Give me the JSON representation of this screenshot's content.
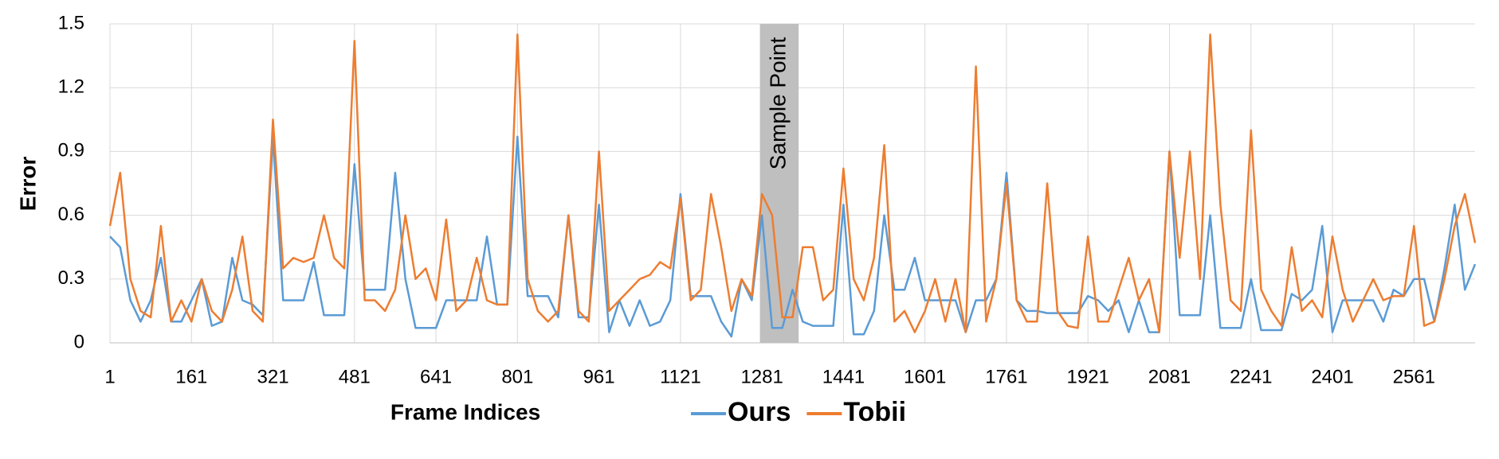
{
  "chart_data": {
    "type": "line",
    "y_label": "Error",
    "x_label": "Frame Indices",
    "x": [
      1,
      21,
      41,
      61,
      81,
      101,
      121,
      141,
      161,
      181,
      201,
      221,
      241,
      261,
      281,
      301,
      321,
      341,
      361,
      381,
      401,
      421,
      441,
      461,
      481,
      501,
      521,
      541,
      561,
      581,
      601,
      621,
      641,
      661,
      681,
      701,
      721,
      741,
      761,
      781,
      801,
      821,
      841,
      861,
      881,
      901,
      921,
      941,
      961,
      981,
      1001,
      1021,
      1041,
      1061,
      1081,
      1101,
      1121,
      1141,
      1161,
      1181,
      1201,
      1221,
      1241,
      1261,
      1281,
      1301,
      1321,
      1341,
      1361,
      1381,
      1401,
      1421,
      1441,
      1461,
      1481,
      1501,
      1521,
      1541,
      1561,
      1581,
      1601,
      1621,
      1641,
      1661,
      1681,
      1701,
      1721,
      1741,
      1761,
      1781,
      1801,
      1821,
      1841,
      1861,
      1881,
      1901,
      1921,
      1941,
      1961,
      1981,
      2001,
      2021,
      2041,
      2061,
      2081,
      2101,
      2121,
      2141,
      2161,
      2181,
      2201,
      2221,
      2241,
      2261,
      2281,
      2301,
      2321,
      2341,
      2361,
      2381,
      2401,
      2421,
      2441,
      2461,
      2481,
      2501,
      2521,
      2541,
      2561,
      2581,
      2601,
      2621,
      2641,
      2661,
      2681
    ],
    "series": [
      {
        "name": "Ours",
        "color": "#5b9bd5",
        "values": [
          0.5,
          0.45,
          0.2,
          0.1,
          0.2,
          0.4,
          0.1,
          0.1,
          0.2,
          0.3,
          0.08,
          0.1,
          0.4,
          0.2,
          0.18,
          0.13,
          0.97,
          0.2,
          0.2,
          0.2,
          0.38,
          0.13,
          0.13,
          0.13,
          0.84,
          0.25,
          0.25,
          0.25,
          0.8,
          0.3,
          0.07,
          0.07,
          0.07,
          0.2,
          0.2,
          0.2,
          0.2,
          0.5,
          0.18,
          0.18,
          0.97,
          0.22,
          0.22,
          0.22,
          0.12,
          0.6,
          0.12,
          0.12,
          0.65,
          0.05,
          0.2,
          0.08,
          0.2,
          0.08,
          0.1,
          0.2,
          0.7,
          0.22,
          0.22,
          0.22,
          0.1,
          0.03,
          0.3,
          0.2,
          0.6,
          0.07,
          0.07,
          0.25,
          0.1,
          0.08,
          0.08,
          0.08,
          0.65,
          0.04,
          0.04,
          0.15,
          0.6,
          0.25,
          0.25,
          0.4,
          0.2,
          0.2,
          0.2,
          0.2,
          0.05,
          0.2,
          0.2,
          0.3,
          0.8,
          0.2,
          0.15,
          0.15,
          0.14,
          0.14,
          0.14,
          0.14,
          0.22,
          0.2,
          0.15,
          0.2,
          0.05,
          0.2,
          0.05,
          0.05,
          0.9,
          0.13,
          0.13,
          0.13,
          0.6,
          0.07,
          0.07,
          0.07,
          0.3,
          0.06,
          0.06,
          0.06,
          0.23,
          0.2,
          0.25,
          0.55,
          0.05,
          0.2,
          0.2,
          0.2,
          0.2,
          0.1,
          0.25,
          0.22,
          0.3,
          0.3,
          0.1,
          0.35,
          0.65,
          0.25,
          0.37
        ]
      },
      {
        "name": "Tobii",
        "color": "#ed7d31",
        "values": [
          0.55,
          0.8,
          0.3,
          0.15,
          0.12,
          0.55,
          0.1,
          0.2,
          0.1,
          0.3,
          0.15,
          0.1,
          0.25,
          0.5,
          0.15,
          0.1,
          1.05,
          0.35,
          0.4,
          0.38,
          0.4,
          0.6,
          0.4,
          0.35,
          1.42,
          0.2,
          0.2,
          0.15,
          0.25,
          0.6,
          0.3,
          0.35,
          0.2,
          0.58,
          0.15,
          0.2,
          0.4,
          0.2,
          0.18,
          0.18,
          1.45,
          0.3,
          0.15,
          0.1,
          0.15,
          0.6,
          0.15,
          0.1,
          0.9,
          0.15,
          0.2,
          0.25,
          0.3,
          0.32,
          0.38,
          0.35,
          0.68,
          0.2,
          0.25,
          0.7,
          0.45,
          0.15,
          0.3,
          0.22,
          0.7,
          0.6,
          0.12,
          0.12,
          0.45,
          0.45,
          0.2,
          0.25,
          0.82,
          0.3,
          0.2,
          0.4,
          0.93,
          0.1,
          0.15,
          0.05,
          0.15,
          0.3,
          0.1,
          0.3,
          0.05,
          1.3,
          0.1,
          0.3,
          0.75,
          0.2,
          0.1,
          0.1,
          0.75,
          0.15,
          0.08,
          0.07,
          0.5,
          0.1,
          0.1,
          0.25,
          0.4,
          0.2,
          0.3,
          0.05,
          0.9,
          0.4,
          0.9,
          0.3,
          1.45,
          0.65,
          0.2,
          0.15,
          1.0,
          0.25,
          0.15,
          0.08,
          0.45,
          0.15,
          0.2,
          0.12,
          0.5,
          0.25,
          0.1,
          0.2,
          0.3,
          0.2,
          0.22,
          0.22,
          0.55,
          0.08,
          0.1,
          0.3,
          0.55,
          0.7,
          0.47
        ]
      }
    ],
    "xlim": [
      1,
      2681
    ],
    "xticks": [
      1,
      161,
      321,
      481,
      641,
      801,
      961,
      1121,
      1281,
      1441,
      1601,
      1761,
      1921,
      2081,
      2241,
      2401,
      2561
    ],
    "ylim": [
      0,
      1.5
    ],
    "yticks": [
      0,
      0.3,
      0.6,
      0.9,
      1.2,
      1.5
    ],
    "grid": true,
    "annotation": {
      "text": "Sample Point",
      "x_range": [
        1277,
        1353
      ],
      "color": "#bfbfbf"
    }
  }
}
